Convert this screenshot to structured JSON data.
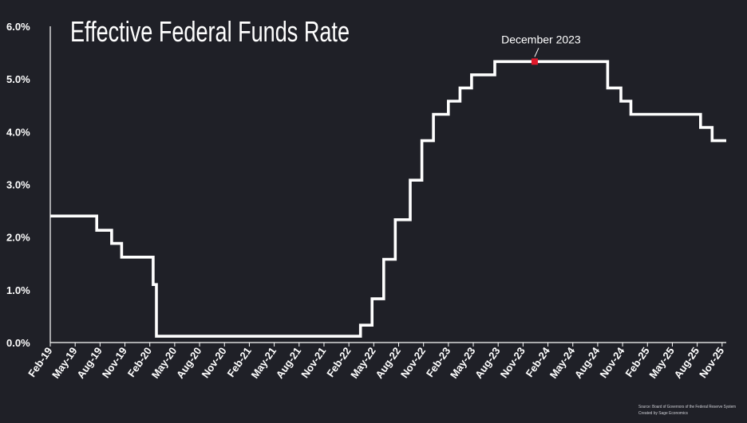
{
  "chart_data": {
    "type": "line",
    "title": "Effective Federal Funds Rate",
    "xlabel": "",
    "ylabel": "",
    "ylim": [
      0,
      6
    ],
    "xlim": [
      0,
      81.5
    ],
    "y_ticks": [
      0,
      1,
      2,
      3,
      4,
      5,
      6
    ],
    "y_tick_labels": [
      "0.0%",
      "1.0%",
      "2.0%",
      "3.0%",
      "4.0%",
      "5.0%",
      "6.0%"
    ],
    "x_tick_labels": [
      "Feb-19",
      "May-19",
      "Aug-19",
      "Nov-19",
      "Feb-20",
      "May-20",
      "Aug-20",
      "Nov-20",
      "Feb-21",
      "May-21",
      "Aug-21",
      "Nov-21",
      "Feb-22",
      "May-22",
      "Aug-22",
      "Nov-22",
      "Feb-23",
      "May-23",
      "Aug-23",
      "Nov-23",
      "Feb-24",
      "May-24",
      "Aug-24",
      "Nov-24",
      "Feb-25",
      "May-25",
      "Aug-25",
      "Nov-25"
    ],
    "x_tick_months": [
      0,
      3,
      6,
      9,
      12,
      15,
      18,
      21,
      24,
      27,
      30,
      33,
      36,
      39,
      42,
      45,
      48,
      51,
      54,
      57,
      60,
      63,
      66,
      69,
      72,
      75,
      78,
      81
    ],
    "series": [
      {
        "name": "Effective Federal Funds Rate",
        "color": "#ffffff",
        "steps": [
          {
            "start_month": 0,
            "rate": 2.4
          },
          {
            "start_month": 5.6,
            "rate": 2.13
          },
          {
            "start_month": 7.4,
            "rate": 1.88
          },
          {
            "start_month": 8.6,
            "rate": 1.62
          },
          {
            "start_month": 12.4,
            "rate": 1.1
          },
          {
            "start_month": 12.8,
            "rate": 0.12
          },
          {
            "start_month": 37.4,
            "rate": 0.33
          },
          {
            "start_month": 38.8,
            "rate": 0.83
          },
          {
            "start_month": 40.2,
            "rate": 1.58
          },
          {
            "start_month": 41.6,
            "rate": 2.33
          },
          {
            "start_month": 43.4,
            "rate": 3.08
          },
          {
            "start_month": 44.8,
            "rate": 3.83
          },
          {
            "start_month": 46.2,
            "rate": 4.33
          },
          {
            "start_month": 48.0,
            "rate": 4.58
          },
          {
            "start_month": 49.4,
            "rate": 4.83
          },
          {
            "start_month": 50.8,
            "rate": 5.08
          },
          {
            "start_month": 53.6,
            "rate": 5.33
          },
          {
            "start_month": 67.2,
            "rate": 4.83
          },
          {
            "start_month": 68.8,
            "rate": 4.58
          },
          {
            "start_month": 70.0,
            "rate": 4.33
          },
          {
            "start_month": 78.4,
            "rate": 4.08
          },
          {
            "start_month": 79.8,
            "rate": 3.83
          }
        ],
        "end_month": 81.5
      }
    ],
    "annotations": [
      {
        "label": "December 2023",
        "month": 58.4,
        "rate": 5.33,
        "marker_color": "#e0192b"
      }
    ],
    "source_note": "Source: Board of Governors of the Federal Reserve System",
    "credit_note": "Created by Sage Economics"
  }
}
